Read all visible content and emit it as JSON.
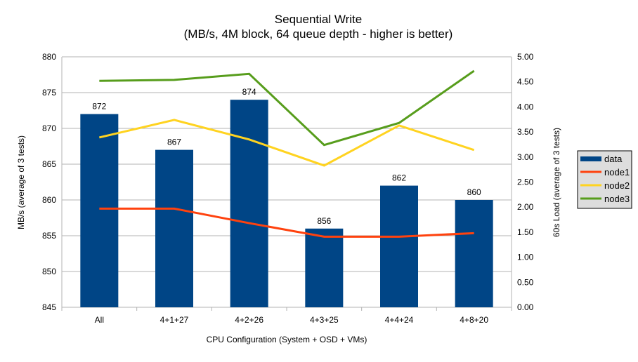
{
  "chart_data": {
    "type": "bar+line",
    "title": "Sequential Write",
    "subtitle": "(MB/s, 4M block, 64 queue depth - higher is better)",
    "xlabel": "CPU Configuration (System + OSD + VMs)",
    "ylabel": "MB/s (average of 3 tests)",
    "y2label": "60s Load (average of 3 tests)",
    "ylim": [
      845,
      880
    ],
    "y2lim": [
      0,
      5
    ],
    "yticks": [
      "845",
      "850",
      "855",
      "860",
      "865",
      "870",
      "875",
      "880"
    ],
    "y2ticks": [
      "0.00",
      "0.50",
      "1.00",
      "1.50",
      "2.00",
      "2.50",
      "3.00",
      "3.50",
      "4.00",
      "4.50",
      "5.00"
    ],
    "categories": [
      "All",
      "4+1+27",
      "4+2+26",
      "4+3+25",
      "4+4+24",
      "4+8+20"
    ],
    "grid": true,
    "legend_position": "right",
    "series": [
      {
        "name": "data",
        "type": "bar",
        "axis": "left",
        "color": "#004586",
        "values": [
          872,
          867,
          874,
          856,
          862,
          860
        ]
      },
      {
        "name": "node1",
        "type": "line",
        "axis": "right",
        "color": "#ff420e",
        "values": [
          1.97,
          1.97,
          1.68,
          1.41,
          1.41,
          1.48
        ]
      },
      {
        "name": "node2",
        "type": "line",
        "axis": "right",
        "color": "#ffd320",
        "values": [
          3.39,
          3.74,
          3.35,
          2.83,
          3.63,
          3.14
        ]
      },
      {
        "name": "node3",
        "type": "line",
        "axis": "right",
        "color": "#579d1c",
        "values": [
          4.52,
          4.54,
          4.66,
          3.24,
          3.68,
          4.72
        ]
      }
    ]
  }
}
